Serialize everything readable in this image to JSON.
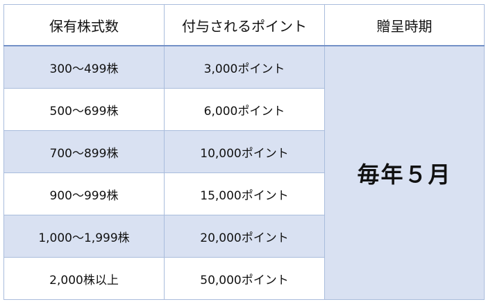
{
  "table": {
    "headers": [
      "保有株式数",
      "付与されるポイント",
      "贈呈時期"
    ],
    "rows": [
      {
        "shares": "300～499株",
        "points": "3,000ポイント"
      },
      {
        "shares": "500～699株",
        "points": "6,000ポイント"
      },
      {
        "shares": "700～899株",
        "points": "10,000ポイント"
      },
      {
        "shares": "900～999株",
        "points": "15,000ポイント"
      },
      {
        "shares": "1,000～1,999株",
        "points": "20,000ポイント"
      },
      {
        "shares": "2,000株以上",
        "points": "50,000ポイント"
      }
    ],
    "period": "毎年５月"
  },
  "colors": {
    "shaded_row": "#d9e1f2",
    "border": "#a9bcdc",
    "header_rule": "#7391c7"
  }
}
